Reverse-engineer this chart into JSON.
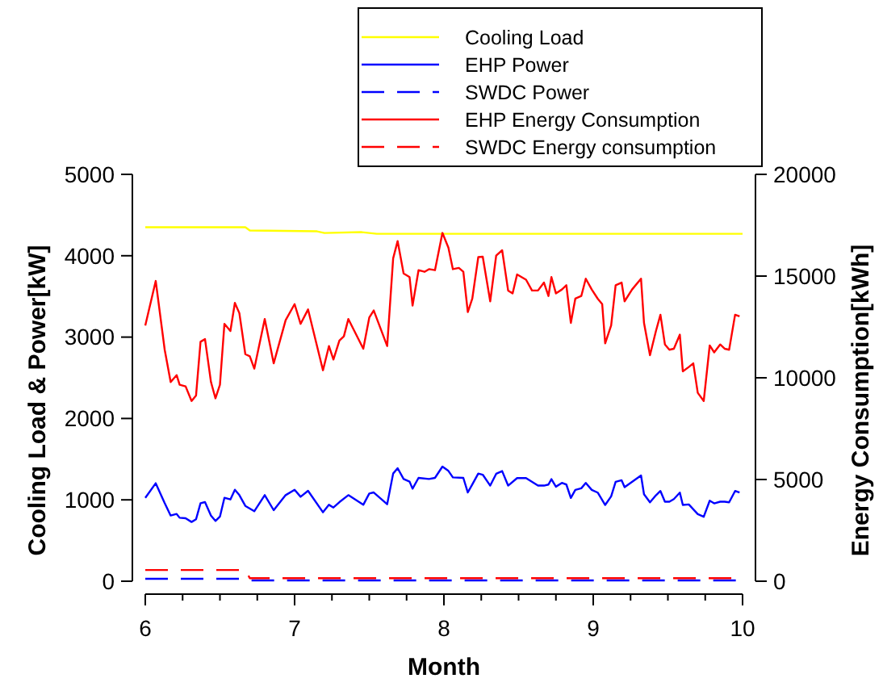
{
  "chart_data": {
    "type": "line",
    "xlabel": "Month",
    "ylabel": "Cooling Load & Power[kW]",
    "y2label": "Energy Consumption[kWh]",
    "xlim": [
      6,
      10
    ],
    "xticks": [
      6,
      {
        "value": 6.25,
        "label": null
      },
      {
        "value": 6.5,
        "label": null
      },
      {
        "value": 6.75,
        "label": null
      },
      7,
      {
        "value": 7.25,
        "label": null
      },
      {
        "value": 7.5,
        "label": null
      },
      {
        "value": 7.75,
        "label": null
      },
      8,
      {
        "value": 8.25,
        "label": null
      },
      {
        "value": 8.5,
        "label": null
      },
      {
        "value": 8.75,
        "label": null
      },
      9,
      {
        "value": 9.25,
        "label": null
      },
      {
        "value": 9.5,
        "label": null
      },
      {
        "value": 9.75,
        "label": null
      },
      10
    ],
    "ylim": [
      0,
      5000
    ],
    "yticks": [
      0,
      1000,
      2000,
      3000,
      4000,
      5000
    ],
    "y2lim": [
      0,
      20000
    ],
    "y2ticks": [
      0,
      5000,
      10000,
      15000,
      20000
    ],
    "legend": "top right",
    "marker": "none",
    "grid": false,
    "series": [
      {
        "name": "Cooling Load",
        "color": "#ffff00",
        "line_style": "solid",
        "x": [
          6,
          6.67,
          6.7,
          7.15,
          7.2,
          7.45,
          7.55,
          10
        ],
        "values": [
          4350,
          4350,
          4310,
          4300,
          4280,
          4290,
          4270,
          4270
        ]
      },
      {
        "name": "EHP Power",
        "color": "#0000ff",
        "line_style": "solid",
        "x": [
          6.0,
          6.07,
          6.13,
          6.17,
          6.21,
          6.23,
          6.27,
          6.31,
          6.34,
          6.37,
          6.4,
          6.44,
          6.47,
          6.5,
          6.53,
          6.57,
          6.6,
          6.63,
          6.67,
          6.73,
          6.8,
          6.86,
          6.94,
          7.0,
          7.04,
          7.09,
          7.19,
          7.23,
          7.26,
          7.3,
          7.36,
          7.46,
          7.5,
          7.53,
          7.62,
          7.66,
          7.69,
          7.73,
          7.77,
          7.79,
          7.83,
          7.9,
          7.94,
          7.99,
          8.03,
          8.06,
          8.13,
          8.16,
          8.19,
          8.23,
          8.26,
          8.31,
          8.35,
          8.39,
          8.43,
          8.49,
          8.55,
          8.63,
          8.67,
          8.7,
          8.72,
          8.75,
          8.79,
          8.82,
          8.85,
          8.88,
          8.92,
          8.95,
          8.99,
          9.03,
          9.08,
          9.12,
          9.15,
          9.19,
          9.21,
          9.32,
          9.34,
          9.38,
          9.42,
          9.45,
          9.48,
          9.51,
          9.54,
          9.58,
          9.6,
          9.64,
          9.7,
          9.74,
          9.78,
          9.81,
          9.85,
          9.88,
          9.91,
          9.95,
          9.98
        ],
        "values": [
          1025,
          1204,
          959,
          807,
          827,
          780,
          774,
          728,
          761,
          959,
          972,
          807,
          741,
          794,
          1025,
          1005,
          1124,
          1058,
          926,
          860,
          1058,
          873,
          1058,
          1124,
          1038,
          1111,
          847,
          939,
          906,
          972,
          1058,
          939,
          1078,
          1091,
          946,
          1323,
          1389,
          1256,
          1224,
          1137,
          1270,
          1256,
          1270,
          1409,
          1356,
          1276,
          1270,
          1091,
          1190,
          1323,
          1309,
          1175,
          1320,
          1353,
          1175,
          1267,
          1267,
          1175,
          1175,
          1188,
          1254,
          1162,
          1208,
          1188,
          1023,
          1122,
          1142,
          1208,
          1122,
          1089,
          937,
          1043,
          1221,
          1241,
          1155,
          1300,
          1069,
          970,
          1056,
          1109,
          977,
          977,
          1010,
          1089,
          937,
          944,
          825,
          792,
          990,
          957,
          977,
          977,
          970,
          1109,
          1089
        ]
      },
      {
        "name": "SWDC Power",
        "color": "#0000ff",
        "line_style": "dashed",
        "x": [
          6,
          6.67,
          6.7,
          10
        ],
        "values": [
          30,
          30,
          10,
          10
        ]
      },
      {
        "name": "EHP Energy Consumption",
        "color": "#ff0000",
        "line_style": "solid",
        "axis": "y2",
        "x": [
          6.0,
          6.07,
          6.13,
          6.17,
          6.21,
          6.23,
          6.27,
          6.31,
          6.34,
          6.37,
          6.4,
          6.44,
          6.47,
          6.5,
          6.53,
          6.57,
          6.6,
          6.63,
          6.67,
          6.7,
          6.73,
          6.8,
          6.86,
          6.94,
          7.0,
          7.04,
          7.09,
          7.19,
          7.23,
          7.26,
          7.3,
          7.33,
          7.36,
          7.46,
          7.5,
          7.53,
          7.62,
          7.66,
          7.69,
          7.73,
          7.77,
          7.79,
          7.83,
          7.87,
          7.9,
          7.94,
          7.99,
          8.03,
          8.06,
          8.1,
          8.13,
          8.16,
          8.19,
          8.23,
          8.26,
          8.31,
          8.35,
          8.39,
          8.43,
          8.46,
          8.49,
          8.55,
          8.59,
          8.63,
          8.67,
          8.7,
          8.72,
          8.75,
          8.79,
          8.82,
          8.85,
          8.88,
          8.92,
          8.95,
          8.99,
          9.03,
          9.06,
          9.08,
          9.12,
          9.15,
          9.19,
          9.21,
          9.26,
          9.32,
          9.34,
          9.38,
          9.42,
          9.45,
          9.48,
          9.51,
          9.54,
          9.58,
          9.6,
          9.64,
          9.67,
          9.7,
          9.74,
          9.78,
          9.81,
          9.85,
          9.88,
          9.91,
          9.95,
          9.98
        ],
        "values": [
          12570,
          14760,
          11380,
          9790,
          10130,
          9660,
          9580,
          8860,
          9130,
          11770,
          11900,
          9790,
          8990,
          9660,
          12650,
          12300,
          13680,
          13180,
          11160,
          11060,
          10450,
          12890,
          10710,
          12830,
          13620,
          12650,
          13360,
          10370,
          11560,
          10900,
          11830,
          12040,
          12890,
          11430,
          12960,
          13310,
          11560,
          15870,
          16720,
          15130,
          14950,
          13550,
          15290,
          15210,
          15340,
          15290,
          17120,
          16400,
          15340,
          15400,
          15210,
          13230,
          13890,
          15930,
          15950,
          13760,
          16010,
          16270,
          14290,
          14150,
          15080,
          14820,
          14290,
          14290,
          14680,
          14020,
          14950,
          14150,
          14340,
          14550,
          12700,
          13890,
          14020,
          14870,
          14340,
          13890,
          13620,
          11690,
          12570,
          14550,
          14680,
          13760,
          14340,
          14870,
          12700,
          11110,
          12300,
          13100,
          11640,
          11380,
          11430,
          12120,
          10320,
          10530,
          10710,
          9260,
          8860,
          11590,
          11250,
          11640,
          11430,
          11380,
          13100,
          13020
        ]
      },
      {
        "name": "SWDC Energy consumption",
        "color": "#ff0000",
        "line_style": "dashed",
        "axis": "y2",
        "x": [
          6,
          6.67,
          6.7,
          10
        ],
        "values": [
          550,
          550,
          150,
          150
        ]
      }
    ]
  }
}
